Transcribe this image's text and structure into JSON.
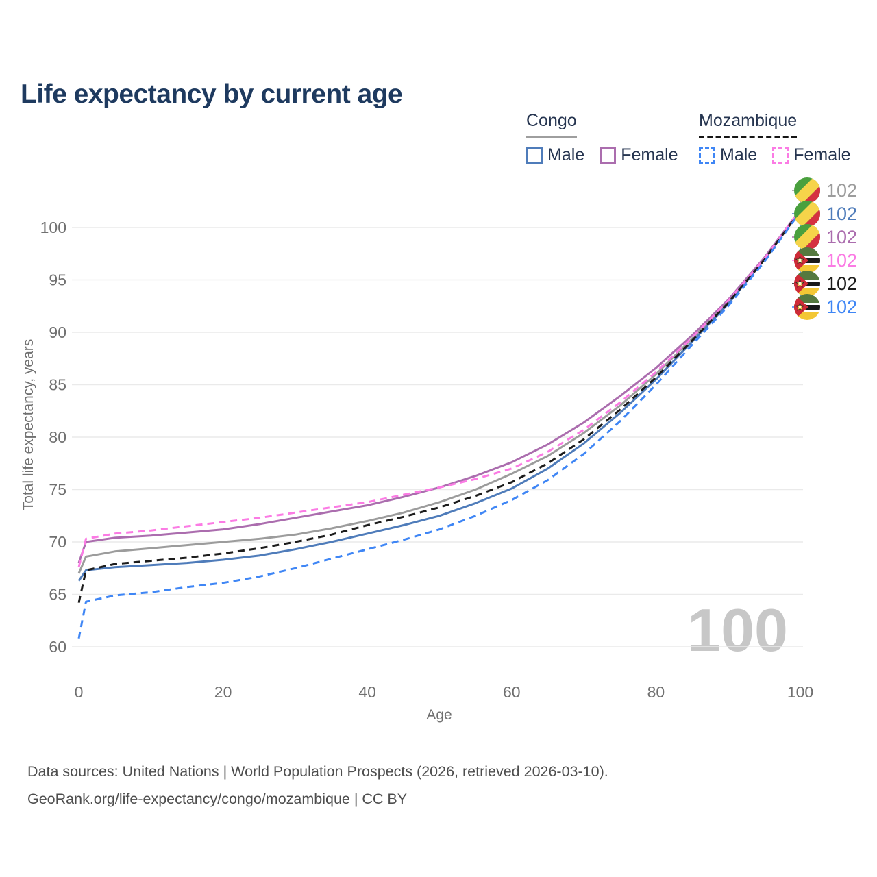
{
  "title": "Life expectancy by current age",
  "legend": {
    "groups": [
      {
        "label": "Congo",
        "line_style": "solid",
        "underline_color": "#9e9e9e",
        "items": [
          {
            "label": "Male",
            "color": "#4f7cba",
            "dashed": false
          },
          {
            "label": "Female",
            "color": "#ab6dae",
            "dashed": false
          }
        ]
      },
      {
        "label": "Mozambique",
        "line_style": "dashed",
        "underline_color": "#161616",
        "items": [
          {
            "label": "Male",
            "color": "#3f86f5",
            "dashed": true
          },
          {
            "label": "Female",
            "color": "#fb7be4",
            "dashed": true
          }
        ]
      }
    ]
  },
  "chart_data": {
    "type": "line",
    "title": "Life expectancy by current age",
    "xlabel": "Age",
    "ylabel": "Total life expectancy, years",
    "xlim": [
      0,
      100
    ],
    "ylim": [
      60,
      104
    ],
    "x_ticks": [
      0,
      20,
      40,
      60,
      80,
      100
    ],
    "y_ticks": [
      60,
      65,
      70,
      75,
      80,
      85,
      90,
      95,
      100
    ],
    "grid": "horizontal",
    "legend_position": "top-right",
    "watermark": "100",
    "ages": [
      0,
      1,
      5,
      10,
      15,
      20,
      25,
      30,
      35,
      40,
      45,
      50,
      55,
      60,
      65,
      70,
      75,
      80,
      85,
      90,
      95,
      100
    ],
    "series": [
      {
        "name": "Congo Total",
        "country": "Congo",
        "flag": "congo",
        "color": "#9c9c9c",
        "dash": "solid",
        "end_label": "102",
        "values": [
          67.0,
          68.6,
          69.1,
          69.4,
          69.7,
          70.0,
          70.3,
          70.7,
          71.3,
          72.0,
          72.8,
          73.8,
          75.0,
          76.5,
          78.2,
          80.4,
          83.0,
          86.0,
          89.4,
          92.9,
          97.0,
          101.6
        ]
      },
      {
        "name": "Congo Male",
        "country": "Congo",
        "flag": "congo",
        "color": "#4f7cba",
        "dash": "solid",
        "end_label": "102",
        "values": [
          66.3,
          67.3,
          67.6,
          67.8,
          68.0,
          68.3,
          68.7,
          69.3,
          70.0,
          70.8,
          71.6,
          72.5,
          73.7,
          75.1,
          77.0,
          79.4,
          82.3,
          85.5,
          89.1,
          92.7,
          96.9,
          101.6
        ]
      },
      {
        "name": "Congo Female",
        "country": "Congo",
        "flag": "congo",
        "color": "#ab6dae",
        "dash": "solid",
        "end_label": "102",
        "values": [
          68.0,
          70.0,
          70.4,
          70.6,
          70.9,
          71.2,
          71.7,
          72.3,
          72.9,
          73.5,
          74.3,
          75.2,
          76.3,
          77.6,
          79.3,
          81.4,
          83.9,
          86.6,
          89.7,
          93.1,
          97.1,
          101.7
        ]
      },
      {
        "name": "Mozambique Female",
        "country": "Mozambique",
        "flag": "mozambique",
        "color": "#fb7be4",
        "dash": "dashed",
        "end_label": "102",
        "values": [
          67.6,
          70.3,
          70.8,
          71.1,
          71.5,
          71.9,
          72.3,
          72.8,
          73.3,
          73.8,
          74.5,
          75.2,
          76.0,
          77.0,
          78.6,
          80.7,
          83.3,
          86.2,
          89.5,
          93.0,
          97.0,
          101.7
        ]
      },
      {
        "name": "Mozambique Total",
        "country": "Mozambique",
        "flag": "mozambique",
        "color": "#1c1c1c",
        "dash": "dashed",
        "end_label": "102",
        "values": [
          64.2,
          67.3,
          67.9,
          68.2,
          68.5,
          68.9,
          69.4,
          70.0,
          70.7,
          71.6,
          72.4,
          73.3,
          74.4,
          75.7,
          77.5,
          79.8,
          82.6,
          85.7,
          89.2,
          92.8,
          96.9,
          101.6
        ]
      },
      {
        "name": "Mozambique Male",
        "country": "Mozambique",
        "flag": "mozambique",
        "color": "#3f86f5",
        "dash": "dashed",
        "end_label": "102",
        "values": [
          60.8,
          64.3,
          64.9,
          65.2,
          65.7,
          66.1,
          66.7,
          67.5,
          68.4,
          69.3,
          70.2,
          71.2,
          72.5,
          74.0,
          75.9,
          78.4,
          81.5,
          85.0,
          88.8,
          92.5,
          96.7,
          101.5
        ]
      }
    ]
  },
  "footer": {
    "line1": "Data sources: United Nations | World Population Prospects (2026, retrieved 2026-03-10).",
    "line2": "GeoRank.org/life-expectancy/congo/mozambique | CC BY"
  }
}
